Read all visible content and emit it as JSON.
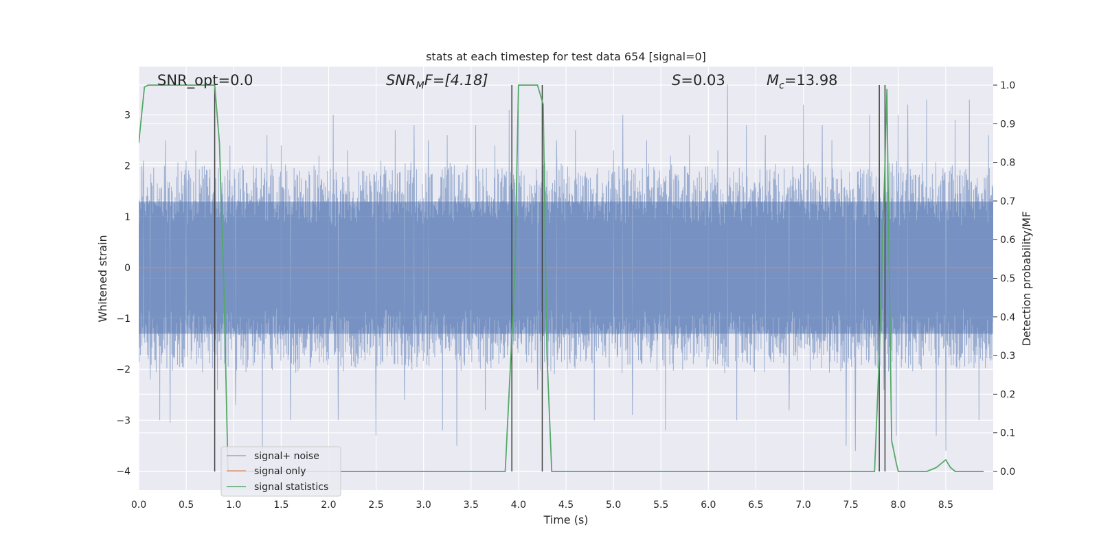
{
  "chart_data": {
    "type": "line",
    "title": "stats at each timestep for test data 654 [signal=0]",
    "xlabel": "Time (s)",
    "ylabel": "Whitened strain",
    "y2label": "Detection probability/MF",
    "xlim": [
      0.0,
      9.0
    ],
    "ylim": [
      -4.37,
      3.95
    ],
    "y2lim": [
      -0.048,
      1.048
    ],
    "x_ticks": [
      0.0,
      0.5,
      1.0,
      1.5,
      2.0,
      2.5,
      3.0,
      3.5,
      4.0,
      4.5,
      5.0,
      5.5,
      6.0,
      6.5,
      7.0,
      7.5,
      8.0,
      8.5
    ],
    "x_tick_labels": [
      "0.0",
      "0.5",
      "1.0",
      "1.5",
      "2.0",
      "2.5",
      "3.0",
      "3.5",
      "4.0",
      "4.5",
      "5.0",
      "5.5",
      "6.0",
      "6.5",
      "7.0",
      "7.5",
      "8.0",
      "8.5"
    ],
    "y_ticks": [
      3,
      2,
      1,
      0,
      -1,
      -2,
      -3,
      -4
    ],
    "y_tick_labels": [
      "3",
      "2",
      "1",
      "0",
      "−1",
      "−2",
      "−3",
      "−4"
    ],
    "y2_ticks": [
      1.0,
      0.9,
      0.8,
      0.7,
      0.6,
      0.5,
      0.4,
      0.3,
      0.2,
      0.1,
      0.0
    ],
    "y2_tick_labels": [
      "1.0",
      "0.9",
      "0.8",
      "0.7",
      "0.6",
      "0.5",
      "0.4",
      "0.3",
      "0.2",
      "0.1",
      "0.0"
    ],
    "annotations": {
      "snr_opt": "SNR_opt=0.0",
      "snr_mf_main": "SNR",
      "snr_mf_sub": "M",
      "snr_mf_rest": "F=[4.18]",
      "s_main": "S",
      "s_rest": "=0.03",
      "mc_main": "M",
      "mc_sub": "c",
      "mc_rest": "=13.98"
    },
    "legend": {
      "position": "lower-left",
      "entries": [
        "signal+ noise",
        "signal only",
        "signal statistics"
      ]
    },
    "grid": true,
    "series": [
      {
        "name": "signal+ noise",
        "color": "#4c72b0",
        "kind": "noise",
        "typical_range": [
          -2.0,
          2.0
        ],
        "peaks": [
          [
            0.05,
            2.1
          ],
          [
            0.12,
            -2.2
          ],
          [
            0.22,
            -3.0
          ],
          [
            0.28,
            2.5
          ],
          [
            0.33,
            -3.05
          ],
          [
            0.5,
            2.1
          ],
          [
            0.6,
            2.3
          ],
          [
            0.8,
            2.6
          ],
          [
            0.83,
            -2.4
          ],
          [
            0.96,
            2.4
          ],
          [
            1.02,
            -2.7
          ],
          [
            1.3,
            -3.9
          ],
          [
            1.35,
            2.6
          ],
          [
            1.5,
            2.4
          ],
          [
            1.6,
            -3.0
          ],
          [
            1.9,
            2.2
          ],
          [
            2.05,
            3.0
          ],
          [
            2.1,
            -3.0
          ],
          [
            2.2,
            2.3
          ],
          [
            2.5,
            -3.3
          ],
          [
            2.55,
            2.1
          ],
          [
            2.7,
            2.7
          ],
          [
            2.8,
            -2.6
          ],
          [
            2.9,
            2.8
          ],
          [
            3.05,
            2.5
          ],
          [
            3.2,
            -3.2
          ],
          [
            3.25,
            2.6
          ],
          [
            3.35,
            -3.5
          ],
          [
            3.55,
            2.8
          ],
          [
            3.65,
            -2.8
          ],
          [
            3.75,
            2.4
          ],
          [
            3.9,
            3.1
          ],
          [
            4.0,
            3.1
          ],
          [
            4.2,
            -2.4
          ],
          [
            4.4,
            2.5
          ],
          [
            4.6,
            2.7
          ],
          [
            4.8,
            -3.0
          ],
          [
            5.0,
            2.3
          ],
          [
            5.1,
            3.0
          ],
          [
            5.2,
            -2.9
          ],
          [
            5.35,
            2.5
          ],
          [
            5.55,
            -3.2
          ],
          [
            5.6,
            2.2
          ],
          [
            5.8,
            2.6
          ],
          [
            6.1,
            2.3
          ],
          [
            6.2,
            3.6
          ],
          [
            6.3,
            -3.0
          ],
          [
            6.4,
            2.8
          ],
          [
            6.6,
            2.6
          ],
          [
            6.85,
            -2.8
          ],
          [
            7.0,
            3.2
          ],
          [
            7.2,
            2.8
          ],
          [
            7.3,
            2.5
          ],
          [
            7.45,
            -3.5
          ],
          [
            7.55,
            -3.6
          ],
          [
            7.7,
            3.0
          ],
          [
            7.85,
            -2.4
          ],
          [
            7.98,
            -3.3
          ],
          [
            8.0,
            3.0
          ],
          [
            8.1,
            3.2
          ],
          [
            8.3,
            3.3
          ],
          [
            8.4,
            -3.3
          ],
          [
            8.5,
            -3.6
          ],
          [
            8.6,
            2.9
          ],
          [
            8.75,
            3.3
          ],
          [
            8.85,
            -3.0
          ],
          [
            8.95,
            2.6
          ]
        ]
      },
      {
        "name": "signal only",
        "color": "#dd8452",
        "x": [
          0.0,
          9.0
        ],
        "y": [
          0.0,
          0.0
        ]
      },
      {
        "name": "signal statistics",
        "color": "#55a868",
        "axis": "right",
        "x": [
          0.0,
          0.06,
          0.1,
          0.2,
          0.3,
          0.4,
          0.5,
          0.6,
          0.7,
          0.8,
          0.85,
          0.9,
          0.94,
          1.0,
          1.5,
          2.0,
          2.5,
          3.0,
          3.5,
          3.86,
          3.9,
          3.96,
          4.0,
          4.1,
          4.2,
          4.26,
          4.3,
          4.35,
          4.5,
          5.0,
          5.5,
          6.0,
          6.5,
          7.0,
          7.5,
          7.75,
          7.8,
          7.86,
          7.88,
          7.9,
          7.93,
          7.98,
          8.0,
          8.3,
          8.4,
          8.45,
          8.5,
          8.55,
          8.6,
          8.9
        ],
        "y": [
          0.85,
          0.995,
          1.0,
          1.0,
          1.0,
          1.0,
          1.0,
          1.0,
          1.0,
          1.0,
          0.85,
          0.45,
          0.0,
          0.0,
          0.0,
          0.0,
          0.0,
          0.0,
          0.0,
          0.0,
          0.2,
          0.5,
          1.0,
          1.0,
          1.0,
          0.95,
          0.3,
          0.0,
          0.0,
          0.0,
          0.0,
          0.0,
          0.0,
          0.0,
          0.0,
          0.0,
          0.3,
          0.8,
          0.99,
          0.6,
          0.08,
          0.02,
          0.0,
          0.0,
          0.01,
          0.02,
          0.03,
          0.01,
          0.0,
          0.0
        ]
      }
    ],
    "vertical_lines": {
      "color": "#404040",
      "top": 1.0,
      "bottom": 0.0,
      "x": [
        0.8,
        3.93,
        4.25,
        7.8,
        7.86
      ]
    }
  }
}
